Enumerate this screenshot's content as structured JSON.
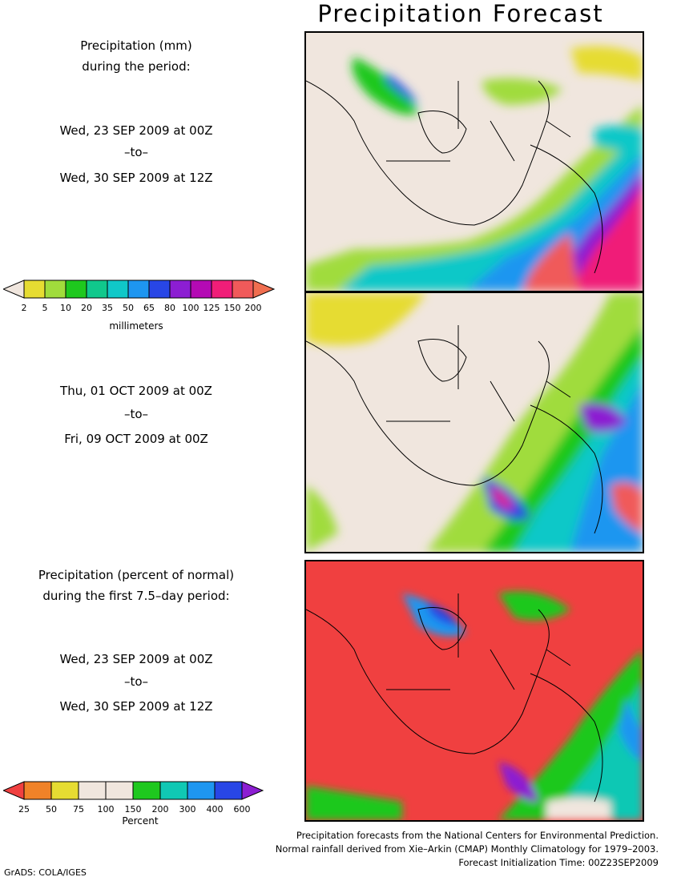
{
  "header": {
    "title": "Precipitation Forecast"
  },
  "panel1": {
    "heading_line1": "Precipitation (mm)",
    "heading_line2": "during the period:",
    "start": "Wed, 23 SEP 2009 at 00Z",
    "to": "–to–",
    "end": "Wed, 30 SEP 2009 at 12Z"
  },
  "panel2": {
    "start": "Thu, 01 OCT 2009 at 00Z",
    "to": "–to–",
    "end": "Fri, 09 OCT 2009 at 00Z"
  },
  "panel3": {
    "heading_line1": "Precipitation (percent of normal)",
    "heading_line2": "during the first 7.5–day period:",
    "start": "Wed, 23 SEP 2009 at 00Z",
    "to": "–to–",
    "end": "Wed, 30 SEP 2009 at 12Z"
  },
  "legend_mm": {
    "unit": "millimeters",
    "ticks": [
      "2",
      "5",
      "10",
      "20",
      "35",
      "50",
      "65",
      "80",
      "100",
      "125",
      "150",
      "200"
    ],
    "colors": [
      "#f0e6de",
      "#e6dc32",
      "#a0dc3c",
      "#1ec81e",
      "#10c88c",
      "#10c8c8",
      "#1e96f0",
      "#2846e6",
      "#8c1ed2",
      "#b40ab4",
      "#f01e78",
      "#f05a5a",
      "#f06e50"
    ]
  },
  "legend_pct": {
    "unit": "Percent",
    "ticks": [
      "25",
      "50",
      "75",
      "100",
      "150",
      "200",
      "300",
      "400",
      "600"
    ],
    "colors": [
      "#f04040",
      "#f08228",
      "#e6dc32",
      "#f0e6de",
      "#f0e6de",
      "#1ec81e",
      "#10c8b4",
      "#1e96f0",
      "#2846e6",
      "#8c1ed2"
    ]
  },
  "credits": {
    "line1": "Precipitation forecasts from the National Centers for Environmental Prediction.",
    "line2": "Normal rainfall derived from Xie–Arkin (CMAP) Monthly Climatology for 1979–2003.",
    "line3": "Forecast Initialization Time: 00Z23SEP2009"
  },
  "footer": {
    "software": "GrADS: COLA/IGES"
  }
}
